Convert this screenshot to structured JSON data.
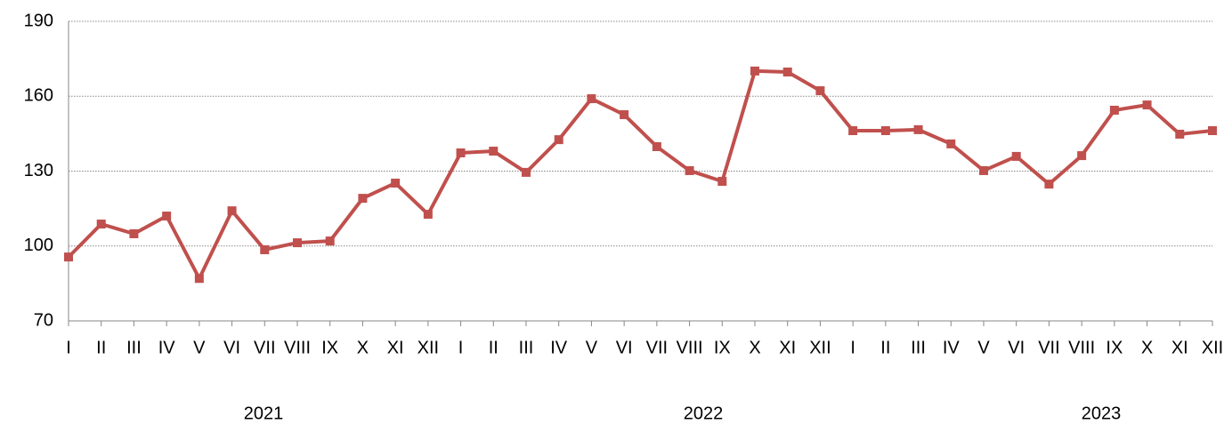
{
  "chart_data": {
    "type": "line",
    "categories": [
      "I",
      "II",
      "III",
      "IV",
      "V",
      "VI",
      "VII",
      "VIII",
      "IX",
      "X",
      "XI",
      "XII",
      "I",
      "II",
      "III",
      "IV",
      "V",
      "VI",
      "VII",
      "VIII",
      "IX",
      "X",
      "XI",
      "XII",
      "I",
      "II",
      "III",
      "IV",
      "V",
      "VI",
      "VII",
      "VIII",
      "IX",
      "X",
      "XI",
      "XII"
    ],
    "values": [
      95.6,
      108.8,
      104.9,
      112.0,
      87.0,
      114.1,
      98.5,
      101.3,
      102.0,
      119.1,
      125.2,
      112.7,
      137.3,
      138.0,
      129.5,
      142.6,
      159.0,
      152.6,
      139.8,
      130.2,
      125.9,
      170.1,
      169.7,
      162.2,
      146.2,
      146.2,
      146.6,
      140.9,
      130.2,
      135.9,
      124.8,
      136.2,
      154.4,
      156.5,
      144.8,
      146.2
    ],
    "color": "#c0504d",
    "year_labels": [
      "2021",
      "2022",
      "2023"
    ],
    "ylim": [
      70,
      190
    ],
    "yticks": [
      70,
      100,
      130,
      160,
      190
    ],
    "grid": true
  }
}
